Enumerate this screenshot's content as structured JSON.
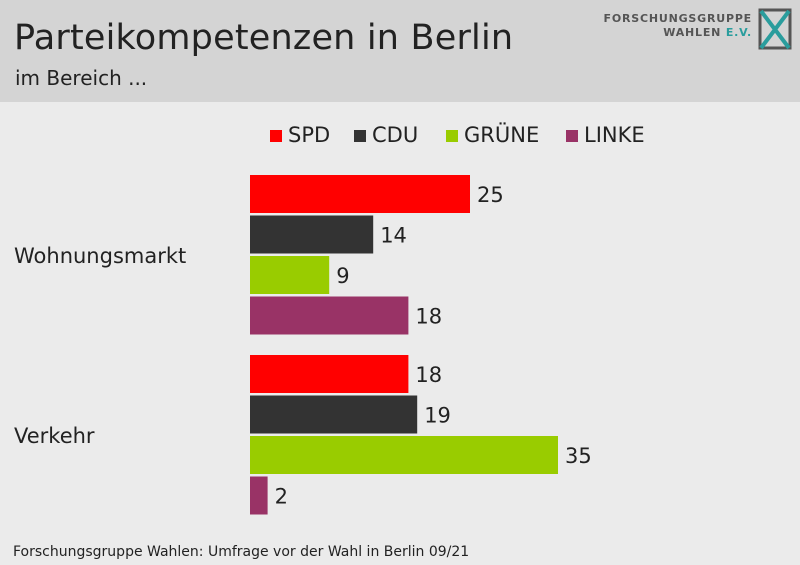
{
  "header": {
    "title": "Parteikompetenzen in Berlin",
    "subtitle": "im Bereich ...",
    "logo_line1": "FORSCHUNGSGRUPPE",
    "logo_line2": "WAHLEN",
    "logo_ev": "E.V."
  },
  "source": "Forschungsgruppe Wahlen: Umfrage vor der Wahl in Berlin 09/21",
  "chart_data": {
    "type": "bar",
    "orientation": "horizontal",
    "categories": [
      "Wohnungsmarkt",
      "Verkehr"
    ],
    "series": [
      {
        "name": "SPD",
        "color": "#ff0000",
        "values": [
          25,
          18
        ]
      },
      {
        "name": "CDU",
        "color": "#333333",
        "values": [
          14,
          19
        ]
      },
      {
        "name": "GRÜNE",
        "color": "#99cc00",
        "values": [
          9,
          35
        ]
      },
      {
        "name": "LINKE",
        "color": "#993366",
        "values": [
          18,
          2
        ]
      }
    ],
    "legend_position": "top",
    "data_labels": true,
    "grid": false
  }
}
